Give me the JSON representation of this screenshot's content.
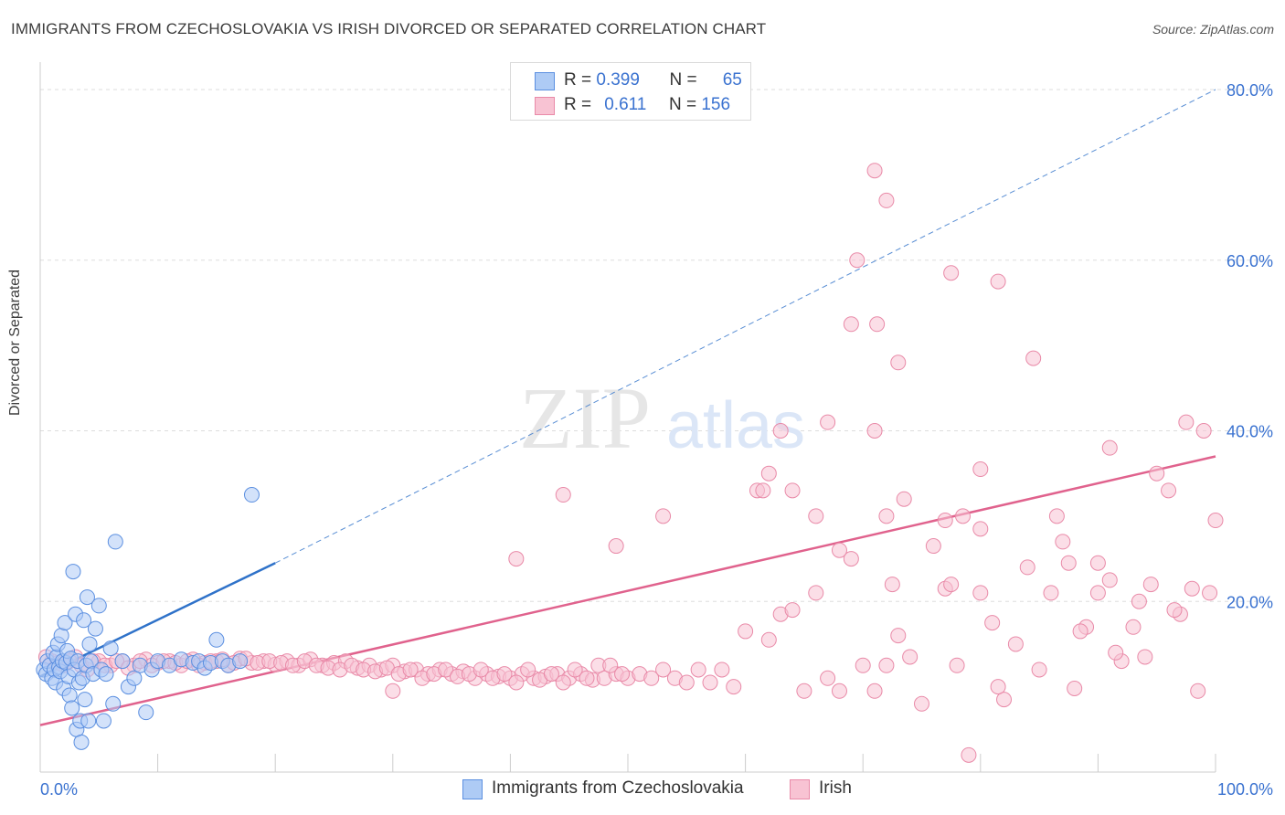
{
  "title": "IMMIGRANTS FROM CZECHOSLOVAKIA VS IRISH DIVORCED OR SEPARATED CORRELATION CHART",
  "source": "Source: ZipAtlas.com",
  "watermark": {
    "zip": "ZIP",
    "atlas": "atlas"
  },
  "legend": {
    "rows": [
      {
        "r_label": "R = ",
        "r_value": "0.399",
        "n_label": "N = ",
        "n_value": "65"
      },
      {
        "r_label": "R = ",
        "r_value": "0.611",
        "n_label": "N = ",
        "n_value": "156"
      }
    ]
  },
  "bottom_legend": [
    {
      "label": "Immigrants from Czechoslovakia"
    },
    {
      "label": "Irish"
    }
  ],
  "chart_data": {
    "type": "scatter",
    "xlabel": "",
    "ylabel": "Divorced or Separated",
    "xlim": [
      0,
      100
    ],
    "ylim": [
      0,
      80
    ],
    "x_tick_labels": [
      "0.0%",
      "100.0%"
    ],
    "y_tick_labels": [
      "20.0%",
      "40.0%",
      "60.0%",
      "80.0%"
    ],
    "y_ticks": [
      20,
      40,
      60,
      80
    ],
    "grid": "horizontal dashed",
    "legend_position": "top-center",
    "colors": {
      "czech_fill": "#aecbf5",
      "czech_stroke": "#5b8fe0",
      "czech_line": "#2f72c9",
      "irish_fill": "#f8c3d3",
      "irish_stroke": "#e98aa8",
      "irish_line": "#e0628d",
      "tick_label": "#3a72d0",
      "grid": "#dddddd"
    },
    "series": [
      {
        "name": "Immigrants from Czechoslovakia",
        "trend": {
          "x": [
            0,
            20
          ],
          "y": [
            11.2,
            24.5
          ],
          "extended_to": [
            100,
            80.0
          ]
        },
        "points": [
          [
            0.3,
            12
          ],
          [
            0.5,
            11.5
          ],
          [
            0.6,
            13
          ],
          [
            0.8,
            12.5
          ],
          [
            1.0,
            11
          ],
          [
            1.1,
            14
          ],
          [
            1.2,
            12
          ],
          [
            1.3,
            10.5
          ],
          [
            1.4,
            13.5
          ],
          [
            1.5,
            15
          ],
          [
            1.6,
            12.3
          ],
          [
            1.7,
            11.8
          ],
          [
            1.8,
            16
          ],
          [
            1.9,
            13
          ],
          [
            2.0,
            9.8
          ],
          [
            2.1,
            17.5
          ],
          [
            2.2,
            12.8
          ],
          [
            2.3,
            14.2
          ],
          [
            2.4,
            11.2
          ],
          [
            2.5,
            9
          ],
          [
            2.6,
            13.3
          ],
          [
            2.7,
            7.5
          ],
          [
            2.8,
            23.5
          ],
          [
            2.9,
            12
          ],
          [
            3.0,
            18.5
          ],
          [
            3.1,
            5
          ],
          [
            3.2,
            13
          ],
          [
            3.3,
            10.5
          ],
          [
            3.4,
            6
          ],
          [
            3.5,
            3.5
          ],
          [
            3.6,
            11
          ],
          [
            3.7,
            17.8
          ],
          [
            3.8,
            8.5
          ],
          [
            3.9,
            12.5
          ],
          [
            4.0,
            20.5
          ],
          [
            4.1,
            6
          ],
          [
            4.2,
            15
          ],
          [
            4.3,
            13
          ],
          [
            4.5,
            11.5
          ],
          [
            4.7,
            16.8
          ],
          [
            5.0,
            19.5
          ],
          [
            5.2,
            12
          ],
          [
            5.4,
            6
          ],
          [
            5.6,
            11.5
          ],
          [
            6.0,
            14.5
          ],
          [
            6.2,
            8
          ],
          [
            6.4,
            27
          ],
          [
            7.0,
            13
          ],
          [
            7.5,
            10
          ],
          [
            8.0,
            11
          ],
          [
            8.5,
            12.5
          ],
          [
            9.0,
            7
          ],
          [
            9.5,
            12
          ],
          [
            10.0,
            13
          ],
          [
            11.0,
            12.5
          ],
          [
            12.0,
            13.2
          ],
          [
            13.0,
            12.8
          ],
          [
            13.5,
            13
          ],
          [
            14.0,
            12.2
          ],
          [
            14.5,
            12.8
          ],
          [
            15.0,
            15.5
          ],
          [
            15.5,
            13
          ],
          [
            16.0,
            12.5
          ],
          [
            17.0,
            13
          ],
          [
            18.0,
            32.5
          ]
        ]
      },
      {
        "name": "Irish",
        "trend": {
          "x": [
            0,
            100
          ],
          "y": [
            5.5,
            37.0
          ]
        },
        "points": [
          [
            1,
            13
          ],
          [
            2,
            12.5
          ],
          [
            3,
            13.5
          ],
          [
            4,
            12
          ],
          [
            5,
            13
          ],
          [
            6,
            12.5
          ],
          [
            7,
            13
          ],
          [
            8,
            12.5
          ],
          [
            9,
            13.2
          ],
          [
            10,
            12.8
          ],
          [
            11,
            13
          ],
          [
            12,
            12.5
          ],
          [
            13,
            13.2
          ],
          [
            14,
            12.8
          ],
          [
            15,
            13
          ],
          [
            16,
            12.5
          ],
          [
            17,
            13.3
          ],
          [
            18,
            12.8
          ],
          [
            19,
            13
          ],
          [
            20,
            12.6
          ],
          [
            21,
            13
          ],
          [
            22,
            12.5
          ],
          [
            23,
            13.2
          ],
          [
            24,
            12.5
          ],
          [
            25,
            12.8
          ],
          [
            26,
            13
          ],
          [
            27,
            12.2
          ],
          [
            28,
            12.5
          ],
          [
            29,
            12
          ],
          [
            30,
            12.5
          ],
          [
            31,
            11.8
          ],
          [
            32,
            12
          ],
          [
            33,
            11.5
          ],
          [
            34,
            12
          ],
          [
            35,
            11.5
          ],
          [
            36,
            11.8
          ],
          [
            37,
            11
          ],
          [
            38,
            11.5
          ],
          [
            39,
            11.2
          ],
          [
            40,
            11
          ],
          [
            41,
            11.5
          ],
          [
            42,
            11
          ],
          [
            43,
            11.2
          ],
          [
            44,
            11.5
          ],
          [
            45,
            11
          ],
          [
            46,
            11.5
          ],
          [
            47,
            10.8
          ],
          [
            48,
            11
          ],
          [
            49,
            11.5
          ],
          [
            50,
            11
          ],
          [
            0.5,
            13.5
          ],
          [
            1.5,
            12.8
          ],
          [
            2.5,
            13
          ],
          [
            3.5,
            12.5
          ],
          [
            4.5,
            13
          ],
          [
            5.5,
            12.5
          ],
          [
            6.5,
            13
          ],
          [
            7.5,
            12.2
          ],
          [
            8.5,
            13
          ],
          [
            9.5,
            12.5
          ],
          [
            10.5,
            13
          ],
          [
            11.5,
            12.8
          ],
          [
            12.5,
            13
          ],
          [
            13.5,
            12.5
          ],
          [
            14.5,
            13
          ],
          [
            15.5,
            13.2
          ],
          [
            16.5,
            12.8
          ],
          [
            17.5,
            13.3
          ],
          [
            18.5,
            12.8
          ],
          [
            19.5,
            13
          ],
          [
            20.5,
            12.8
          ],
          [
            21.5,
            12.5
          ],
          [
            22.5,
            13
          ],
          [
            23.5,
            12.5
          ],
          [
            24.5,
            12.2
          ],
          [
            25.5,
            12
          ],
          [
            26.5,
            12.5
          ],
          [
            27.5,
            12
          ],
          [
            28.5,
            11.8
          ],
          [
            29.5,
            12.2
          ],
          [
            30.5,
            11.5
          ],
          [
            31.5,
            12
          ],
          [
            32.5,
            11
          ],
          [
            33.5,
            11.5
          ],
          [
            34.5,
            12
          ],
          [
            35.5,
            11.2
          ],
          [
            36.5,
            11.5
          ],
          [
            37.5,
            12
          ],
          [
            38.5,
            11
          ],
          [
            39.5,
            11.5
          ],
          [
            40.5,
            10.5
          ],
          [
            41.5,
            12
          ],
          [
            42.5,
            10.8
          ],
          [
            43.5,
            11.5
          ],
          [
            44.5,
            10.5
          ],
          [
            45.5,
            12
          ],
          [
            46.5,
            11
          ],
          [
            47.5,
            12.5
          ],
          [
            48.5,
            12.5
          ],
          [
            49.5,
            11.5
          ],
          [
            51,
            11.5
          ],
          [
            52,
            11
          ],
          [
            53,
            12
          ],
          [
            54,
            11
          ],
          [
            55,
            10.5
          ],
          [
            56,
            12
          ],
          [
            57,
            10.5
          ],
          [
            58,
            12
          ],
          [
            59,
            10
          ],
          [
            60,
            16.5
          ],
          [
            61,
            33
          ],
          [
            62,
            15.5
          ],
          [
            63,
            18.5
          ],
          [
            64,
            19
          ],
          [
            65,
            9.5
          ],
          [
            66,
            21
          ],
          [
            67,
            11
          ],
          [
            68,
            9.5
          ],
          [
            69,
            25
          ],
          [
            70,
            12.5
          ],
          [
            71,
            9.5
          ],
          [
            72,
            12.5
          ],
          [
            73,
            16
          ],
          [
            74,
            13.5
          ],
          [
            75,
            8
          ],
          [
            76,
            26.5
          ],
          [
            77,
            21.5
          ],
          [
            78,
            12.5
          ],
          [
            79,
            2
          ],
          [
            80,
            21
          ],
          [
            81,
            17.5
          ],
          [
            82,
            8.5
          ],
          [
            83,
            15
          ],
          [
            84,
            24
          ],
          [
            85,
            12
          ],
          [
            86,
            21
          ],
          [
            87,
            27
          ],
          [
            88,
            9.8
          ],
          [
            89,
            17
          ],
          [
            90,
            21
          ],
          [
            91,
            22.5
          ],
          [
            92,
            13
          ],
          [
            93,
            17
          ],
          [
            94,
            13.5
          ],
          [
            95,
            35
          ],
          [
            96,
            33
          ],
          [
            97,
            18.5
          ],
          [
            98,
            21.5
          ],
          [
            99,
            40
          ],
          [
            100,
            29.5
          ],
          [
            72.5,
            22
          ],
          [
            78.5,
            30
          ],
          [
            81.5,
            10
          ],
          [
            86.5,
            30
          ],
          [
            88.5,
            16.5
          ],
          [
            91.5,
            14
          ],
          [
            93.5,
            20
          ],
          [
            94.5,
            22
          ],
          [
            96.5,
            19
          ],
          [
            97.5,
            41
          ],
          [
            98.5,
            9.5
          ],
          [
            99.5,
            21
          ],
          [
            87.5,
            24.5
          ]
        ],
        "outliers_note": "upper points",
        "upper_points": [
          [
            71.0,
            70.5
          ],
          [
            72.0,
            67
          ],
          [
            69.5,
            60
          ],
          [
            77.5,
            58.5
          ],
          [
            81.5,
            57.5
          ],
          [
            69.0,
            52.5
          ],
          [
            71.2,
            52.5
          ],
          [
            73.0,
            48
          ],
          [
            84.5,
            48.5
          ],
          [
            67.0,
            41
          ],
          [
            63.0,
            40
          ],
          [
            71.0,
            40
          ],
          [
            91.0,
            38
          ],
          [
            62.0,
            35
          ],
          [
            80.0,
            35.5
          ],
          [
            64.0,
            33
          ],
          [
            73.5,
            32
          ],
          [
            72.0,
            30
          ],
          [
            77.0,
            29.5
          ],
          [
            90.0,
            24.5
          ],
          [
            66.0,
            30
          ],
          [
            80.0,
            28.5
          ],
          [
            68.0,
            26
          ],
          [
            77.5,
            22
          ],
          [
            61.5,
            33
          ],
          [
            53.0,
            30
          ],
          [
            44.5,
            32.5
          ],
          [
            40.5,
            25
          ],
          [
            30.0,
            9.5
          ],
          [
            49.0,
            26.5
          ]
        ]
      }
    ]
  }
}
